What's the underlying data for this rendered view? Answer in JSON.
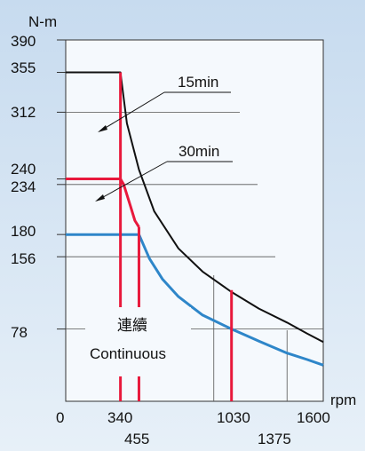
{
  "chart_data": {
    "type": "line",
    "title": "",
    "ylabel": "N-m",
    "xlabel": "rpm",
    "xlim": [
      0,
      1600
    ],
    "ylim": [
      0,
      390
    ],
    "y_tick_labels": [
      "390",
      "355",
      "312",
      "240",
      "234",
      "180",
      "156",
      "78"
    ],
    "x_tick_labels_top": [
      "0",
      "340",
      "1030",
      "1600"
    ],
    "x_tick_labels_bottom": [
      "455",
      "1375"
    ],
    "grid": "partial",
    "legend": "inline labels",
    "series": [
      {
        "name": "",
        "color": "#111111",
        "x": [
          0,
          340,
          380,
          455,
          550,
          700,
          850,
          1030,
          1200,
          1375,
          1500,
          1600
        ],
        "y": [
          355,
          355,
          300,
          250,
          205,
          165,
          140,
          118,
          100,
          85,
          73,
          64
        ]
      },
      {
        "name": "",
        "color": "#e8193c",
        "x": [
          0,
          340,
          360,
          400,
          430,
          455
        ],
        "y": [
          240,
          240,
          234,
          212,
          195,
          188
        ]
      },
      {
        "name": "",
        "color": "#2e86c9",
        "x": [
          0,
          455,
          520,
          600,
          700,
          850,
          1030,
          1200,
          1375,
          1500,
          1600
        ],
        "y": [
          180,
          180,
          154,
          132,
          113,
          93,
          78,
          65,
          52,
          45,
          39
        ]
      }
    ],
    "markers": [
      {
        "x": 340,
        "color": "#e8193c",
        "style": "solid"
      },
      {
        "x": 455,
        "color": "#e8193c",
        "style": "solid"
      },
      {
        "x": 1030,
        "color": "#e8193c",
        "style": "solid"
      }
    ],
    "annotations": {
      "label_15min": "15min",
      "label_30min": "30min",
      "continuous_jp": "連續",
      "continuous_en": "Continuous"
    }
  }
}
